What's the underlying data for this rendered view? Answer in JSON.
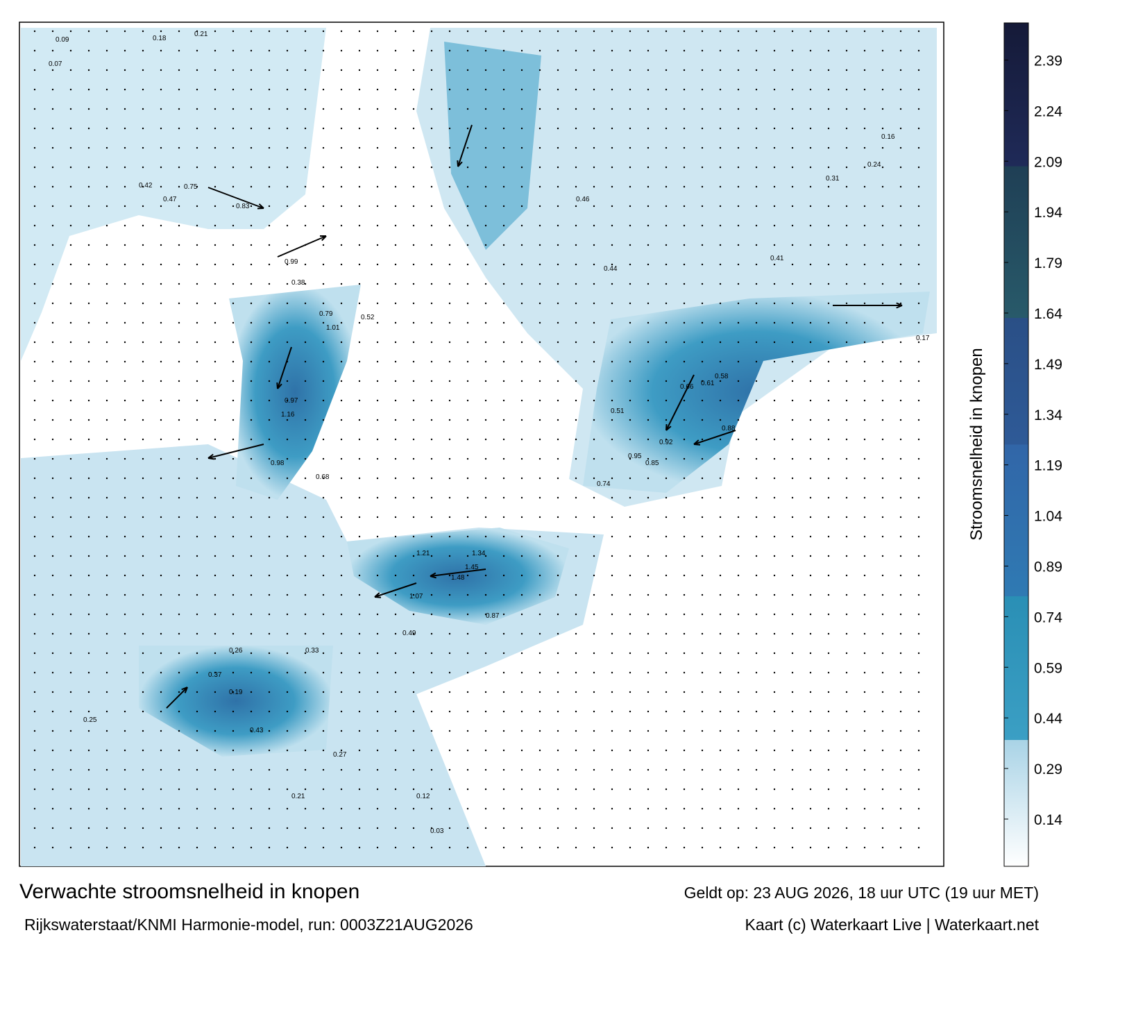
{
  "header": {
    "title": "Verwachte stroomsnelheid in knopen",
    "model": "Rijkswaterstaat/KNMI Harmonie-model, run: 0003Z21AUG2026",
    "valid": "Geldt op: 23 AUG 2026, 18 uur UTC (19 uur MET)",
    "credit": "Kaart (c) Waterkaart Live | Waterkaart.net"
  },
  "colorbar": {
    "label": "Stroomsnelheid in knopen",
    "range": [
      0,
      2.5
    ],
    "ticks": [
      0.14,
      0.29,
      0.44,
      0.59,
      0.74,
      0.89,
      1.04,
      1.19,
      1.34,
      1.49,
      1.64,
      1.79,
      1.94,
      2.09,
      2.24,
      2.39
    ]
  },
  "speed_labels": [
    "0.09",
    "0.07",
    "0.18",
    "0.21",
    "0.42",
    "0.75",
    "0.83",
    "0.47",
    "0.38",
    "0.99",
    "1.01",
    "0.52",
    "0.79",
    "1.16",
    "0.97",
    "0.98",
    "0.68",
    "0.51",
    "0.46",
    "0.44",
    "0.41",
    "0.31",
    "0.24",
    "0.16",
    "0.88",
    "0.95",
    "0.92",
    "0.85",
    "0.74",
    "0.66",
    "0.61",
    "0.58",
    "1.21",
    "1.34",
    "1.48",
    "1.45",
    "1.07",
    "0.87",
    "0.49",
    "0.43",
    "0.37",
    "0.26",
    "0.19",
    "0.33",
    "0.27",
    "0.25",
    "0.21",
    "0.12",
    "0.03",
    "0.17"
  ]
}
